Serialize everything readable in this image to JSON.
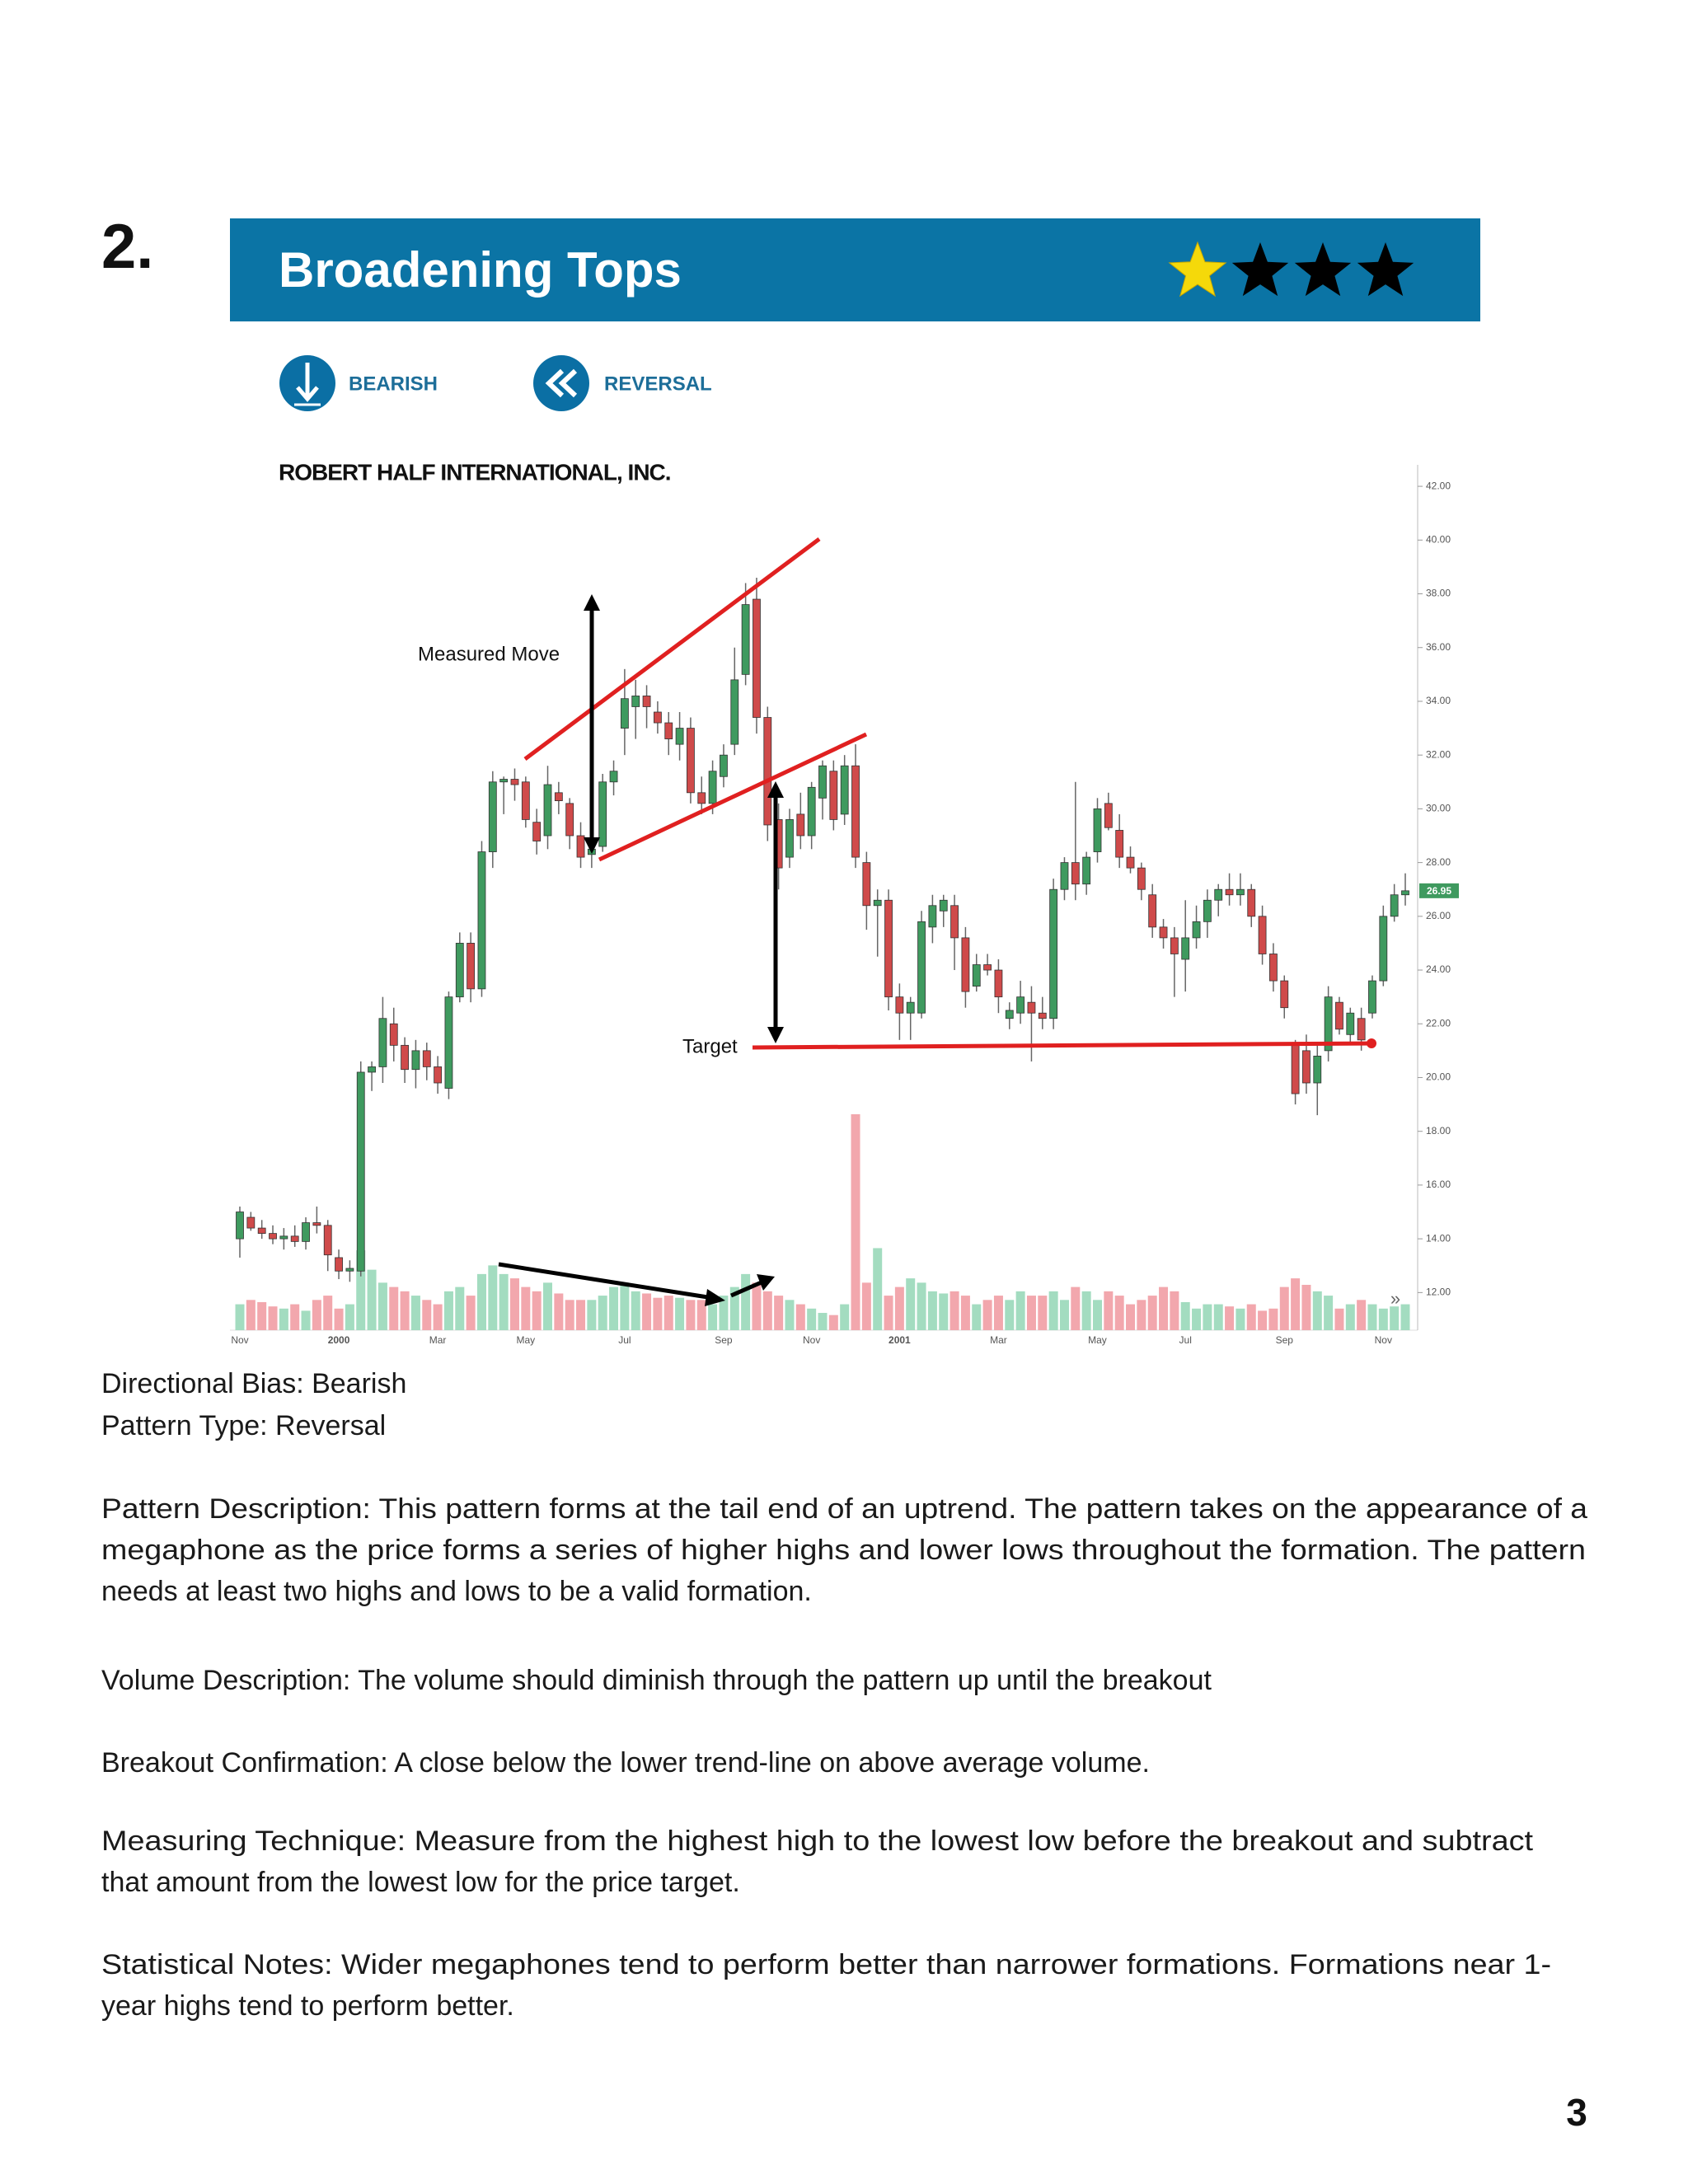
{
  "heading": {
    "number": "2.",
    "title": "Broadening Tops",
    "rating": 1,
    "rating_max": 4
  },
  "tags": [
    "BEARISH",
    "REVERSAL"
  ],
  "chart_data": {
    "type": "candlestick",
    "title": "ROBERT HALF INTERNATIONAL, INC.",
    "annotations": [
      "Measured Move",
      "Target"
    ],
    "up_color": "#3f9a5f",
    "down_color": "#cf4a4a",
    "volume_up_color": "#a3dcc0",
    "volume_down_color": "#f2a7ad",
    "ylim": [
      10.6,
      42.8
    ],
    "yticks": [
      {
        "value": 12,
        "label": "12.00"
      },
      {
        "value": 14,
        "label": "14.00"
      },
      {
        "value": 16,
        "label": "16.00"
      },
      {
        "value": 18,
        "label": "18.00"
      },
      {
        "value": 20,
        "label": "20.00"
      },
      {
        "value": 22,
        "label": "22.00"
      },
      {
        "value": 24,
        "label": "24.00"
      },
      {
        "value": 26,
        "label": "26.00"
      },
      {
        "value": 28,
        "label": "28.00"
      },
      {
        "value": 30,
        "label": "30.00"
      },
      {
        "value": 32,
        "label": "32.00"
      },
      {
        "value": 34,
        "label": "34.00"
      },
      {
        "value": 36,
        "label": "36.00"
      },
      {
        "value": 38,
        "label": "38.00"
      },
      {
        "value": 40,
        "label": "40.00"
      },
      {
        "value": 42,
        "label": "42.00"
      }
    ],
    "last_price": {
      "value": 26.95,
      "label": "26.95"
    },
    "categories": [
      "Nov",
      null,
      null,
      null,
      null,
      null,
      null,
      null,
      null,
      "2000",
      null,
      null,
      null,
      null,
      null,
      null,
      null,
      null,
      "Mar",
      null,
      null,
      null,
      null,
      null,
      null,
      null,
      "May",
      null,
      null,
      null,
      null,
      null,
      null,
      null,
      null,
      "Jul",
      null,
      null,
      null,
      null,
      null,
      null,
      null,
      null,
      "Sep",
      null,
      null,
      null,
      null,
      null,
      null,
      null,
      "Nov",
      null,
      null,
      null,
      null,
      null,
      null,
      null,
      "2001",
      null,
      null,
      null,
      null,
      null,
      null,
      null,
      null,
      "Mar",
      null,
      null,
      null,
      null,
      null,
      null,
      null,
      null,
      "May",
      null,
      null,
      null,
      null,
      null,
      null,
      null,
      "Jul",
      null,
      null,
      null,
      null,
      null,
      null,
      null,
      null,
      "Sep",
      null,
      null,
      null,
      null,
      null,
      null,
      null,
      null,
      "Nov",
      null,
      null
    ],
    "ohlc": [
      [
        14,
        15.2,
        13.3,
        15
      ],
      [
        14.8,
        15,
        14.3,
        14.4
      ],
      [
        14.4,
        14.7,
        14,
        14.2
      ],
      [
        14.2,
        14.5,
        13.8,
        14
      ],
      [
        14,
        14.4,
        13.6,
        14.1
      ],
      [
        14.1,
        14.5,
        13.7,
        13.9
      ],
      [
        13.9,
        14.8,
        13.6,
        14.6
      ],
      [
        14.6,
        15.2,
        14.2,
        14.5
      ],
      [
        14.5,
        14.7,
        12.8,
        13.4
      ],
      [
        13.3,
        13.6,
        12.5,
        12.8
      ],
      [
        12.8,
        13.2,
        12.4,
        12.9
      ],
      [
        12.8,
        20.6,
        12.6,
        20.2
      ],
      [
        20.2,
        20.6,
        19.5,
        20.4
      ],
      [
        20.4,
        23,
        19.8,
        22.2
      ],
      [
        22,
        22.6,
        20.6,
        21.2
      ],
      [
        21.2,
        21.5,
        19.8,
        20.3
      ],
      [
        20.3,
        21.4,
        19.6,
        21
      ],
      [
        21,
        21.3,
        19.9,
        20.4
      ],
      [
        20.4,
        20.8,
        19.4,
        19.8
      ],
      [
        19.6,
        23.2,
        19.2,
        23
      ],
      [
        23,
        25.4,
        22.8,
        25
      ],
      [
        25,
        25.4,
        22.8,
        23.3
      ],
      [
        23.3,
        28.8,
        23,
        28.4
      ],
      [
        28.4,
        31.4,
        27.8,
        31
      ],
      [
        31,
        31.2,
        29.8,
        31.1
      ],
      [
        31.1,
        31.5,
        30.3,
        30.9
      ],
      [
        31,
        31.2,
        29.3,
        29.6
      ],
      [
        29.5,
        30,
        28.3,
        28.8
      ],
      [
        29,
        31.6,
        28.5,
        30.9
      ],
      [
        30.6,
        31,
        29.8,
        30.3
      ],
      [
        30.2,
        30.4,
        28.5,
        29
      ],
      [
        29,
        29.5,
        27.8,
        28.2
      ],
      [
        28.3,
        29,
        27.8,
        28.5
      ],
      [
        28.6,
        31.3,
        28.4,
        31
      ],
      [
        31,
        31.8,
        30.5,
        31.4
      ],
      [
        33,
        35.2,
        32,
        34.1
      ],
      [
        33.8,
        34.8,
        32.6,
        34.2
      ],
      [
        34.2,
        34.6,
        33,
        33.8
      ],
      [
        33.6,
        34,
        32.8,
        33.2
      ],
      [
        33.2,
        33.6,
        32,
        32.6
      ],
      [
        32.4,
        33.6,
        31.8,
        33
      ],
      [
        33,
        33.4,
        30.2,
        30.6
      ],
      [
        30.6,
        31.2,
        29.8,
        30.2
      ],
      [
        30.2,
        31.8,
        29.8,
        31.4
      ],
      [
        31.2,
        32.4,
        30.8,
        32
      ],
      [
        32.4,
        36,
        32,
        34.8
      ],
      [
        35,
        38.4,
        34.6,
        37.6
      ],
      [
        37.8,
        38.6,
        32.8,
        33.4
      ],
      [
        33.4,
        33.8,
        28.8,
        29.4
      ],
      [
        29.6,
        30.2,
        27,
        27.8
      ],
      [
        28.2,
        30,
        27.8,
        29.6
      ],
      [
        29.8,
        30.6,
        28.5,
        29
      ],
      [
        29,
        31,
        28.5,
        30.8
      ],
      [
        30.4,
        31.8,
        29.6,
        31.6
      ],
      [
        31.4,
        31.8,
        29.2,
        29.6
      ],
      [
        29.8,
        32,
        29.4,
        31.6
      ],
      [
        31.6,
        32.4,
        27.8,
        28.2
      ],
      [
        28,
        28.4,
        25.5,
        26.4
      ],
      [
        26.4,
        27,
        24.5,
        26.6
      ],
      [
        26.6,
        27,
        22.5,
        23
      ],
      [
        23,
        23.5,
        21.4,
        22.4
      ],
      [
        22.4,
        23,
        21.4,
        22.8
      ],
      [
        22.4,
        26.2,
        22.2,
        25.8
      ],
      [
        25.6,
        26.8,
        25,
        26.4
      ],
      [
        26.2,
        26.8,
        25.6,
        26.6
      ],
      [
        26.4,
        26.8,
        24,
        25.2
      ],
      [
        25.2,
        25.6,
        22.6,
        23.2
      ],
      [
        23.4,
        24.6,
        23.2,
        24.2
      ],
      [
        24.2,
        24.6,
        23.8,
        24
      ],
      [
        24,
        24.4,
        22.4,
        23
      ],
      [
        22.2,
        22.8,
        21.8,
        22.5
      ],
      [
        22.4,
        23.6,
        22,
        23
      ],
      [
        22.8,
        23.4,
        20.6,
        22.4
      ],
      [
        22.4,
        23,
        21.8,
        22.2
      ],
      [
        22.2,
        27.4,
        21.8,
        27
      ],
      [
        27,
        28.2,
        26.6,
        28
      ],
      [
        28,
        31,
        26.6,
        27.2
      ],
      [
        27.2,
        28.4,
        26.8,
        28.2
      ],
      [
        28.4,
        30.4,
        28,
        30
      ],
      [
        30.2,
        30.6,
        29.2,
        29.3
      ],
      [
        29.2,
        29.8,
        27.8,
        28.2
      ],
      [
        28.2,
        28.6,
        27.6,
        27.8
      ],
      [
        27.8,
        28,
        26.6,
        27
      ],
      [
        26.8,
        27.2,
        25.2,
        25.6
      ],
      [
        25.6,
        25.9,
        24.8,
        25.2
      ],
      [
        25.2,
        25.6,
        23,
        24.6
      ],
      [
        24.4,
        26.6,
        23.2,
        25.2
      ],
      [
        25.2,
        26.4,
        24.8,
        25.8
      ],
      [
        25.8,
        27,
        25.2,
        26.6
      ],
      [
        26.6,
        27.2,
        26,
        27
      ],
      [
        27,
        27.6,
        26.4,
        26.8
      ],
      [
        26.8,
        27.6,
        26.4,
        27
      ],
      [
        27,
        27.2,
        25.6,
        26
      ],
      [
        26,
        26.4,
        24.2,
        24.6
      ],
      [
        24.6,
        25,
        23.2,
        23.6
      ],
      [
        23.6,
        23.8,
        22.2,
        22.6
      ],
      [
        21.2,
        21.4,
        19,
        19.4
      ],
      [
        21,
        21.6,
        19.4,
        19.8
      ],
      [
        19.8,
        21.2,
        18.6,
        20.8
      ],
      [
        21,
        23.4,
        20.6,
        23
      ],
      [
        22.8,
        23,
        21.6,
        21.8
      ],
      [
        21.6,
        22.6,
        21.2,
        22.4
      ],
      [
        22.2,
        22.6,
        21,
        21.4
      ],
      [
        22.4,
        23.8,
        22.2,
        23.6
      ],
      [
        23.6,
        26.4,
        23.4,
        26
      ],
      [
        26,
        27.2,
        25.8,
        26.8
      ],
      [
        26.8,
        27.6,
        26.4,
        26.95
      ]
    ],
    "volume": [
      12,
      14,
      13,
      11,
      10,
      12,
      9,
      14,
      16,
      10,
      12,
      37,
      28,
      22,
      20,
      18,
      16,
      14,
      12,
      18,
      20,
      16,
      26,
      30,
      26,
      24,
      20,
      18,
      22,
      17,
      14,
      14,
      14,
      16,
      20,
      22,
      18,
      17,
      15,
      16,
      15,
      14,
      14,
      12,
      16,
      20,
      26,
      22,
      18,
      16,
      14,
      12,
      10,
      8,
      7,
      12,
      100,
      22,
      38,
      16,
      20,
      24,
      22,
      18,
      17,
      18,
      16,
      12,
      14,
      16,
      14,
      18,
      16,
      16,
      18,
      14,
      20,
      18,
      14,
      18,
      16,
      12,
      14,
      16,
      20,
      18,
      13,
      10,
      12,
      12,
      11,
      10,
      12,
      9,
      10,
      20,
      24,
      21,
      18,
      16,
      10,
      12,
      14,
      12,
      10,
      11,
      12
    ]
  },
  "text": {
    "lines": [
      "Directional Bias: Bearish",
      "Pattern Type: Reversal",
      "Pattern Description: This pattern forms at the tail end of an uptrend. The pattern takes on the appearance of a",
      "megaphone as the price forms a series of higher highs and lower lows throughout the formation. The pattern",
      "needs at least two highs and lows to be a valid formation.",
      "Volume Description: The volume should diminish through the pattern up until the breakout",
      "Breakout Confirmation: A close below the lower trend-line on above average volume.",
      "Measuring Technique: Measure from the highest high to the lowest low before the breakout and subtract",
      "that amount from the lowest low for the price target.",
      "Statistical Notes: Wider megaphones tend to perform better than narrower formations. Formations near 1-",
      "year highs tend to perform better."
    ]
  },
  "page_number": "3"
}
